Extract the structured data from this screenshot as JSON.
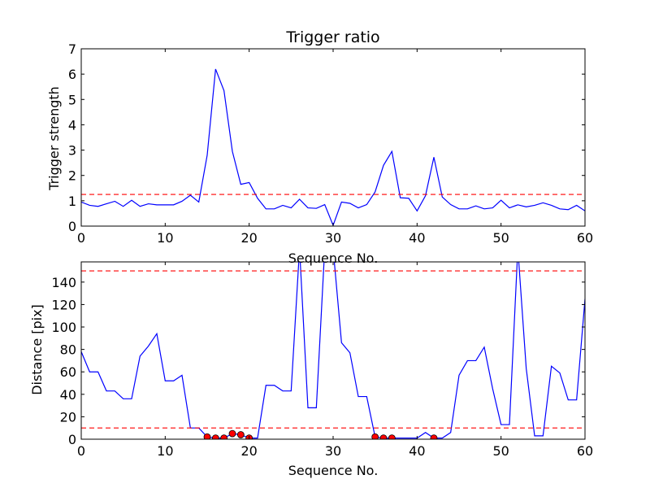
{
  "chart_data": [
    {
      "type": "line",
      "title": "Trigger ratio",
      "xlabel": "Sequence No.",
      "ylabel": "Trigger strength",
      "xlim": [
        0,
        60
      ],
      "ylim": [
        0,
        7
      ],
      "xticks": [
        0,
        10,
        20,
        30,
        40,
        50,
        60
      ],
      "yticks": [
        0,
        1,
        2,
        3,
        4,
        5,
        6,
        7
      ],
      "grid": false,
      "series": [
        {
          "color": "#0000ff",
          "style": "solid",
          "x": [
            0,
            1,
            2,
            3,
            4,
            5,
            6,
            7,
            8,
            9,
            10,
            11,
            12,
            13,
            14,
            15,
            16,
            17,
            18,
            19,
            20,
            21,
            22,
            23,
            24,
            25,
            26,
            27,
            28,
            29,
            30,
            31,
            32,
            33,
            34,
            35,
            36,
            37,
            38,
            39,
            40,
            41,
            42,
            43,
            44,
            45,
            46,
            47,
            48,
            49,
            50,
            51,
            52,
            53,
            54,
            55,
            56,
            57,
            58,
            59,
            60
          ],
          "y": [
            0.95,
            0.82,
            0.78,
            0.88,
            0.98,
            0.78,
            1.02,
            0.78,
            0.88,
            0.84,
            0.84,
            0.84,
            0.98,
            1.22,
            0.95,
            2.8,
            6.2,
            5.35,
            2.95,
            1.65,
            1.72,
            1.1,
            0.68,
            0.68,
            0.82,
            0.72,
            1.06,
            0.72,
            0.7,
            0.85,
            0.03,
            0.95,
            0.9,
            0.72,
            0.85,
            1.35,
            2.4,
            2.95,
            1.12,
            1.1,
            0.6,
            1.2,
            2.72,
            1.15,
            0.85,
            0.68,
            0.68,
            0.8,
            0.68,
            0.72,
            1.02,
            0.72,
            0.84,
            0.76,
            0.82,
            0.92,
            0.82,
            0.68,
            0.65,
            0.82,
            0.6
          ]
        },
        {
          "color": "#ff0000",
          "style": "dashed",
          "x": [
            0,
            60
          ],
          "y": [
            1.25,
            1.25
          ]
        }
      ]
    },
    {
      "type": "line",
      "title": "",
      "xlabel": "Sequence No.",
      "ylabel": "Distance [pix]",
      "xlim": [
        0,
        60
      ],
      "ylim": [
        0,
        158
      ],
      "xticks": [
        0,
        10,
        20,
        30,
        40,
        50,
        60
      ],
      "yticks": [
        0,
        20,
        40,
        60,
        80,
        100,
        120,
        140
      ],
      "grid": false,
      "series": [
        {
          "color": "#0000ff",
          "style": "solid",
          "x": [
            0,
            1,
            2,
            3,
            4,
            5,
            6,
            7,
            8,
            9,
            10,
            11,
            12,
            13,
            14,
            15,
            16,
            17,
            18,
            19,
            20,
            21,
            22,
            23,
            24,
            25,
            26,
            27,
            28,
            29,
            30,
            31,
            32,
            33,
            34,
            35,
            36,
            37,
            38,
            39,
            40,
            41,
            42,
            43,
            44,
            45,
            46,
            47,
            48,
            49,
            50,
            51,
            52,
            53,
            54,
            55,
            56,
            57,
            58,
            59,
            60
          ],
          "y": [
            78,
            60,
            60,
            43,
            43,
            36,
            36,
            74,
            83,
            94,
            52,
            52,
            57,
            10,
            10,
            2,
            1,
            1,
            5,
            4,
            1,
            1,
            48,
            48,
            43,
            43,
            170,
            28,
            28,
            170,
            170,
            86,
            77,
            38,
            38,
            2,
            1,
            1,
            1,
            1,
            1,
            6,
            1,
            1,
            6,
            57,
            70,
            70,
            82,
            45,
            13,
            13,
            170,
            63,
            3,
            3,
            65,
            59,
            35,
            35,
            125
          ]
        },
        {
          "color": "#ff0000",
          "style": "dashed",
          "x": [
            0,
            60
          ],
          "y": [
            150,
            150
          ]
        },
        {
          "color": "#ff0000",
          "style": "dashed",
          "x": [
            0,
            60
          ],
          "y": [
            10,
            10
          ]
        },
        {
          "color": "#ff0000",
          "style": "markers",
          "marker": "circle",
          "x": [
            15,
            16,
            17,
            18,
            19,
            20,
            35,
            36,
            37,
            42
          ],
          "y": [
            2,
            1,
            1,
            5,
            4,
            1,
            2,
            1,
            1,
            1
          ]
        }
      ]
    }
  ]
}
